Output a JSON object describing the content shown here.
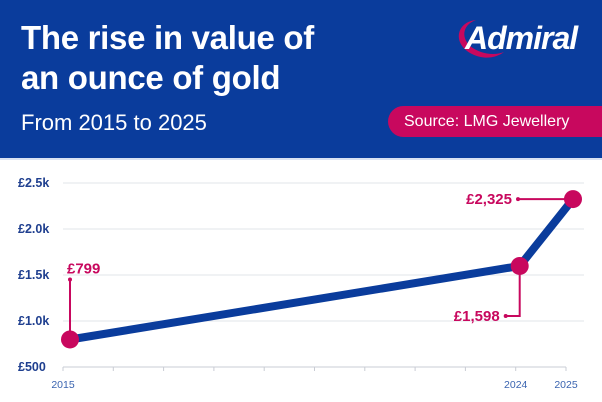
{
  "header": {
    "title_line1": "The rise in value of",
    "title_line2": "an ounce of gold",
    "subtitle": "From 2015 to 2025",
    "logo_text": "Admiral",
    "source": "Source: LMG Jewellery"
  },
  "colors": {
    "brand_blue": "#0a3c9c",
    "accent_pink": "#c8085e",
    "line_blue": "#0a3c9c",
    "grid": "#e2e4ea"
  },
  "chart_data": {
    "type": "line",
    "title": "The rise in value of an ounce of gold",
    "subtitle": "From 2015 to 2025",
    "xlabel": "",
    "ylabel": "",
    "xlim": [
      2015,
      2025
    ],
    "ylim": [
      500,
      2500
    ],
    "grid": true,
    "yticks": [
      500,
      1000,
      1500,
      2000,
      2500
    ],
    "ytick_labels": [
      "£500",
      "£1.0k",
      "£1.5k",
      "£2.0k",
      "£2.5k"
    ],
    "xticks": [
      2015,
      2016,
      2017,
      2018,
      2019,
      2020,
      2021,
      2022,
      2023,
      2024,
      2025
    ],
    "xtick_labels": [
      "2015",
      "",
      "",
      "",
      "",
      "",
      "",
      "",
      "",
      "2024",
      "2025"
    ],
    "series": [
      {
        "name": "Value of an ounce of gold",
        "x": [
          2015,
          2024,
          2025
        ],
        "values": [
          799,
          1598,
          2325
        ]
      }
    ],
    "annotations": [
      {
        "x": 2015,
        "label": "£799"
      },
      {
        "x": 2024,
        "label": "£1,598"
      },
      {
        "x": 2025,
        "label": "£2,325"
      }
    ]
  }
}
